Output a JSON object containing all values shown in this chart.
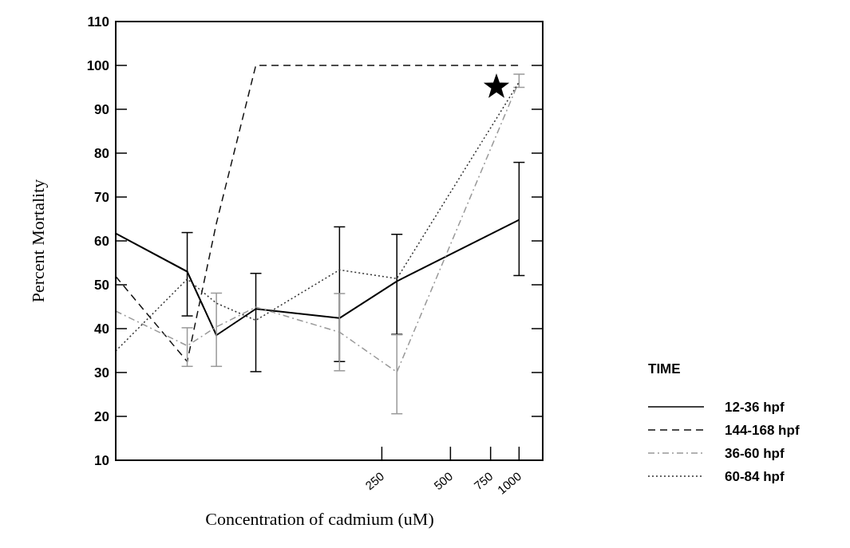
{
  "chart_data": {
    "type": "line",
    "xlabel": "Concentration of cadmium (uM)",
    "ylabel": "Percent Mortality",
    "legend_title": "TIME",
    "legend": "right",
    "log": "x",
    "grid": false,
    "marker": "none",
    "x": [
      17,
      35,
      47,
      70,
      163,
      291,
      1000
    ],
    "xlim": [
      17,
      1270
    ],
    "xticks": [
      250,
      500,
      750,
      1000
    ],
    "ylim": [
      10,
      110
    ],
    "yticks": [
      10,
      20,
      30,
      40,
      50,
      60,
      70,
      80,
      90,
      100,
      110
    ],
    "series": [
      {
        "name": "12-36 hpf",
        "color": "#000000",
        "line_style": "solid",
        "values": [
          61.7,
          53,
          38.5,
          44.5,
          42.4,
          50.8,
          64.8
        ],
        "errors": [
          null,
          [
            42.9,
            61.9
          ],
          null,
          [
            30.2,
            52.6
          ],
          [
            32.5,
            63.2
          ],
          [
            38.7,
            61.5
          ],
          [
            52.1,
            77.9
          ]
        ]
      },
      {
        "name": "144-168 hpf",
        "color": "#111111",
        "line_style": "dashed",
        "values": [
          51.9,
          32.5,
          64,
          100,
          100,
          100,
          100
        ]
      },
      {
        "name": "36-60 hpf",
        "color": "#999999",
        "line_style": "dashdot",
        "values": [
          44,
          36.1,
          40.4,
          44.9,
          39.2,
          30.1,
          96.4
        ],
        "errors": [
          null,
          [
            31.4,
            40.2
          ],
          [
            31.4,
            48.1
          ],
          null,
          [
            30.4,
            48
          ],
          [
            20.6,
            38.6
          ],
          [
            95,
            98
          ]
        ]
      },
      {
        "name": "60-84 hpf",
        "color": "#333333",
        "line_style": "dotted",
        "values": [
          34.9,
          51.3,
          45.8,
          41.9,
          53.4,
          51.4,
          96.2
        ]
      }
    ]
  }
}
